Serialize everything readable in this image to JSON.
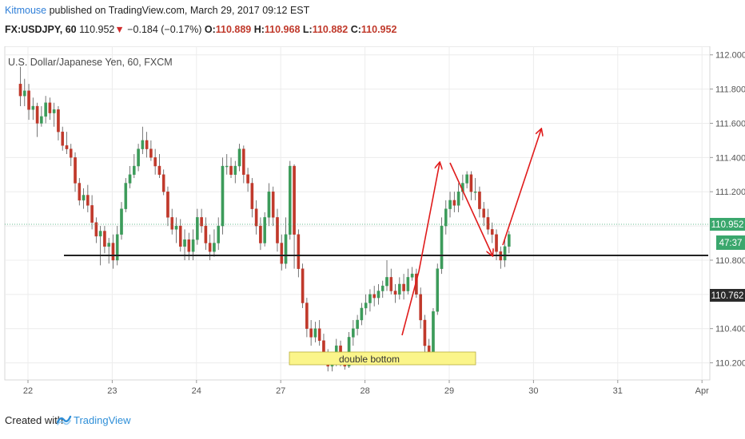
{
  "header": {
    "author": "Kitmouse",
    "published_text": "published on TradingView.com, March 29, 2017 09:12 EST",
    "symbol": "FX:USDJPY, 60",
    "last": "110.952",
    "change_arrow": "▼",
    "change": "−0.184 (−0.17%)",
    "open_label": "O:",
    "open": "110.889",
    "high_label": "H:",
    "high": "110.968",
    "low_label": "L:",
    "low": "110.882",
    "close_label": "C:",
    "close": "110.952"
  },
  "footer": {
    "created": "Created with",
    "brand": "TradingView"
  },
  "colors": {
    "up": "#3c9b5a",
    "down": "#c0392b",
    "current_badge": "#3aa76d",
    "level_badge": "#2b2b2b",
    "arrow": "#e01b1b",
    "highlight": "#fbf58a"
  },
  "chart_data": {
    "type": "candlestick",
    "title": "U.S. Dollar/Japanese Yen, 60, FXCM",
    "x_tick_labels": [
      "22",
      "23",
      "24",
      "27",
      "28",
      "29",
      "30",
      "31",
      "Apr"
    ],
    "x_range": [
      0,
      8.3
    ],
    "y_range": [
      110.1,
      112.05
    ],
    "y_ticks": [
      110.2,
      110.4,
      110.6,
      110.8,
      111.0,
      111.2,
      111.4,
      111.6,
      111.8,
      112.0
    ],
    "y_tick_labels": [
      "110.200",
      "110.400",
      "110.600",
      "110.800",
      "111.000",
      "111.200",
      "111.400",
      "111.600",
      "111.800",
      "112.000"
    ],
    "current_price": 110.952,
    "current_label": "110.952",
    "countdown_label": "47:37",
    "marked_level": 110.762,
    "marked_label": "110.762",
    "support_level": 110.765,
    "candles": [
      [
        -0.09,
        111.83,
        111.76,
        111.93,
        111.7
      ],
      [
        -0.04,
        111.76,
        111.79,
        111.86,
        111.7
      ],
      [
        0.01,
        111.79,
        111.68,
        111.83,
        111.62
      ],
      [
        0.06,
        111.68,
        111.7,
        111.75,
        111.62
      ],
      [
        0.11,
        111.7,
        111.6,
        111.72,
        111.52
      ],
      [
        0.16,
        111.6,
        111.64,
        111.7,
        111.58
      ],
      [
        0.21,
        111.64,
        111.72,
        111.76,
        111.6
      ],
      [
        0.26,
        111.72,
        111.66,
        111.75,
        111.62
      ],
      [
        0.31,
        111.66,
        111.68,
        111.72,
        111.58
      ],
      [
        0.36,
        111.68,
        111.55,
        111.7,
        111.5
      ],
      [
        0.41,
        111.55,
        111.47,
        111.58,
        111.44
      ],
      [
        0.46,
        111.47,
        111.45,
        111.55,
        111.42
      ],
      [
        0.51,
        111.45,
        111.4,
        111.48,
        111.35
      ],
      [
        0.56,
        111.4,
        111.25,
        111.43,
        111.2
      ],
      [
        0.61,
        111.25,
        111.15,
        111.28,
        111.12
      ],
      [
        0.66,
        111.15,
        111.18,
        111.22,
        111.1
      ],
      [
        0.71,
        111.18,
        111.12,
        111.24,
        111.08
      ],
      [
        0.76,
        111.12,
        111.02,
        111.18,
        110.98
      ],
      [
        0.81,
        111.02,
        110.94,
        111.05,
        110.9
      ],
      [
        0.86,
        110.94,
        110.97,
        111.0,
        110.77
      ],
      [
        0.91,
        110.97,
        110.88,
        111.0,
        110.84
      ],
      [
        0.96,
        110.88,
        110.9,
        110.93,
        110.78
      ],
      [
        1.01,
        110.9,
        110.8,
        110.95,
        110.75
      ],
      [
        1.06,
        110.8,
        110.95,
        111.0,
        110.77
      ],
      [
        1.11,
        110.95,
        111.1,
        111.14,
        110.92
      ],
      [
        1.16,
        111.1,
        111.25,
        111.28,
        111.08
      ],
      [
        1.21,
        111.25,
        111.3,
        111.35,
        111.22
      ],
      [
        1.26,
        111.3,
        111.35,
        111.42,
        111.28
      ],
      [
        1.31,
        111.35,
        111.45,
        111.48,
        111.32
      ],
      [
        1.36,
        111.45,
        111.5,
        111.58,
        111.42
      ],
      [
        1.41,
        111.5,
        111.45,
        111.55,
        111.4
      ],
      [
        1.46,
        111.45,
        111.4,
        111.5,
        111.38
      ],
      [
        1.51,
        111.4,
        111.35,
        111.45,
        111.3
      ],
      [
        1.56,
        111.35,
        111.3,
        111.42,
        111.28
      ],
      [
        1.61,
        111.3,
        111.2,
        111.33,
        111.18
      ],
      [
        1.66,
        111.2,
        111.05,
        111.23,
        111.0
      ],
      [
        1.71,
        111.05,
        110.98,
        111.1,
        110.95
      ],
      [
        1.76,
        110.98,
        111.0,
        111.05,
        110.9
      ],
      [
        1.81,
        111.0,
        110.88,
        111.04,
        110.85
      ],
      [
        1.86,
        110.88,
        110.92,
        110.98,
        110.8
      ],
      [
        1.91,
        110.92,
        110.85,
        110.96,
        110.8
      ],
      [
        1.96,
        110.85,
        110.92,
        110.98,
        110.8
      ],
      [
        2.01,
        110.92,
        111.05,
        111.1,
        110.89
      ],
      [
        2.06,
        111.05,
        111.0,
        111.1,
        110.96
      ],
      [
        2.11,
        111.0,
        110.9,
        111.05,
        110.86
      ],
      [
        2.16,
        110.9,
        110.85,
        110.95,
        110.8
      ],
      [
        2.21,
        110.85,
        110.9,
        110.98,
        110.82
      ],
      [
        2.26,
        110.9,
        111.0,
        111.05,
        110.86
      ],
      [
        2.31,
        111.0,
        111.35,
        111.4,
        110.95
      ],
      [
        2.36,
        111.35,
        111.35,
        111.42,
        111.3
      ],
      [
        2.41,
        111.35,
        111.3,
        111.4,
        111.28
      ],
      [
        2.46,
        111.3,
        111.35,
        111.38,
        111.25
      ],
      [
        2.51,
        111.35,
        111.45,
        111.48,
        111.32
      ],
      [
        2.56,
        111.45,
        111.3,
        111.47,
        111.25
      ],
      [
        2.61,
        111.3,
        111.25,
        111.34,
        111.2
      ],
      [
        2.66,
        111.25,
        111.1,
        111.28,
        111.05
      ],
      [
        2.71,
        111.1,
        111.0,
        111.15,
        110.95
      ],
      [
        2.76,
        111.0,
        110.9,
        111.05,
        110.86
      ],
      [
        2.81,
        110.9,
        111.05,
        111.08,
        110.88
      ],
      [
        2.86,
        111.05,
        111.2,
        111.25,
        111.0
      ],
      [
        2.91,
        111.2,
        111.05,
        111.23,
        111.0
      ],
      [
        2.96,
        111.05,
        110.9,
        111.1,
        110.85
      ],
      [
        3.01,
        110.9,
        110.78,
        110.95,
        110.74
      ],
      [
        3.06,
        110.78,
        110.95,
        111.05,
        110.75
      ],
      [
        3.11,
        110.95,
        111.35,
        111.38,
        110.92
      ],
      [
        3.16,
        111.35,
        110.95,
        111.36,
        110.75
      ],
      [
        3.21,
        110.95,
        110.75,
        110.98,
        110.7
      ],
      [
        3.26,
        110.75,
        110.55,
        110.78,
        110.52
      ],
      [
        3.31,
        110.55,
        110.4,
        110.58,
        110.35
      ],
      [
        3.36,
        110.4,
        110.35,
        110.45,
        110.3
      ],
      [
        3.41,
        110.35,
        110.4,
        110.44,
        110.32
      ],
      [
        3.46,
        110.4,
        110.33,
        110.45,
        110.3
      ],
      [
        3.51,
        110.33,
        110.25,
        110.37,
        110.2
      ],
      [
        3.56,
        110.25,
        110.18,
        110.28,
        110.15
      ],
      [
        3.61,
        110.18,
        110.22,
        110.26,
        110.15
      ],
      [
        3.66,
        110.22,
        110.3,
        110.34,
        110.18
      ],
      [
        3.71,
        110.3,
        110.22,
        110.33,
        110.18
      ],
      [
        3.76,
        110.22,
        110.18,
        110.26,
        110.16
      ],
      [
        3.81,
        110.18,
        110.35,
        110.38,
        110.17
      ],
      [
        3.86,
        110.35,
        110.4,
        110.45,
        110.3
      ],
      [
        3.91,
        110.4,
        110.45,
        110.48,
        110.36
      ],
      [
        3.96,
        110.45,
        110.52,
        110.55,
        110.42
      ],
      [
        4.01,
        110.52,
        110.55,
        110.6,
        110.48
      ],
      [
        4.06,
        110.55,
        110.6,
        110.63,
        110.5
      ],
      [
        4.11,
        110.6,
        110.58,
        110.65,
        110.53
      ],
      [
        4.16,
        110.58,
        110.62,
        110.66,
        110.54
      ],
      [
        4.21,
        110.62,
        110.65,
        110.68,
        110.58
      ],
      [
        4.26,
        110.65,
        110.7,
        110.8,
        110.62
      ],
      [
        4.31,
        110.7,
        110.62,
        110.75,
        110.6
      ],
      [
        4.36,
        110.62,
        110.6,
        110.66,
        110.55
      ],
      [
        4.41,
        110.6,
        110.66,
        110.7,
        110.57
      ],
      [
        4.46,
        110.66,
        110.62,
        110.72,
        110.57
      ],
      [
        4.51,
        110.62,
        110.7,
        110.75,
        110.6
      ],
      [
        4.56,
        110.7,
        110.72,
        110.76,
        110.68
      ],
      [
        4.61,
        110.72,
        110.6,
        110.75,
        110.58
      ],
      [
        4.66,
        110.6,
        110.45,
        110.64,
        110.4
      ],
      [
        4.71,
        110.45,
        110.3,
        110.48,
        110.25
      ],
      [
        4.76,
        110.3,
        110.25,
        110.34,
        110.2
      ],
      [
        4.81,
        110.25,
        110.5,
        110.52,
        110.22
      ],
      [
        4.86,
        110.5,
        110.75,
        110.78,
        110.48
      ],
      [
        4.91,
        110.75,
        111.0,
        111.05,
        110.72
      ],
      [
        4.96,
        111.0,
        111.1,
        111.15,
        110.95
      ],
      [
        5.01,
        111.1,
        111.15,
        111.2,
        111.05
      ],
      [
        5.06,
        111.15,
        111.12,
        111.2,
        111.08
      ],
      [
        5.11,
        111.12,
        111.2,
        111.25,
        111.08
      ],
      [
        5.16,
        111.2,
        111.25,
        111.3,
        111.15
      ],
      [
        5.21,
        111.25,
        111.3,
        111.32,
        111.22
      ],
      [
        5.26,
        111.3,
        111.2,
        111.32,
        111.15
      ],
      [
        5.31,
        111.2,
        111.2,
        111.28,
        111.15
      ],
      [
        5.36,
        111.2,
        111.1,
        111.23,
        111.05
      ],
      [
        5.41,
        111.1,
        111.05,
        111.14,
        111.0
      ],
      [
        5.46,
        111.05,
        110.98,
        111.1,
        110.95
      ],
      [
        5.51,
        110.98,
        110.95,
        111.02,
        110.9
      ],
      [
        5.56,
        110.95,
        110.85,
        110.98,
        110.8
      ],
      [
        5.61,
        110.85,
        110.8,
        110.88,
        110.75
      ],
      [
        5.66,
        110.8,
        110.88,
        110.92,
        110.76
      ],
      [
        5.71,
        110.88,
        110.95,
        110.97,
        110.84
      ]
    ]
  }
}
